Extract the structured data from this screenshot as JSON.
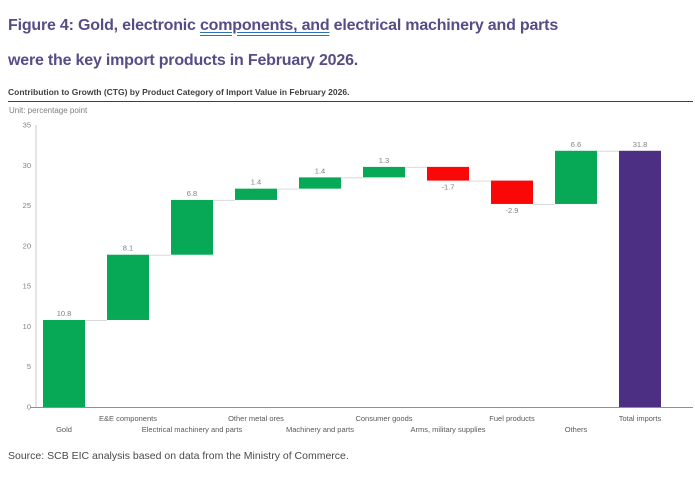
{
  "title": {
    "line1": {
      "pre": "Figure 4: Gold, electronic ",
      "underlined": "components, and",
      "post": " electrical machinery and parts"
    },
    "line2": "were the key import products in February 2026."
  },
  "subtitle": "Contribution to Growth (CTG) by Product Category of Import Value in February 2026.",
  "unit_label": "Unit: percentage point",
  "source": "Source: SCB EIC analysis based on data from the Ministry of Commerce.",
  "colors": {
    "title_text": "#584c87",
    "title_underline": "#2e74b5",
    "subtitle_text": "#3f3f3f",
    "divider": "#404040",
    "muted_text": "#7f7f7f",
    "xlabel_text": "#595959",
    "axis_line": "#8f8f8f",
    "yaxis_line": "#c9c9c9",
    "connector": "#d9d9d9",
    "positive_bar": "#07a956",
    "negative_bar": "#fa0707",
    "total_bar": "#4c2e82",
    "source_text": "#4a4a4a"
  },
  "chart_data": {
    "type": "bar",
    "subtype": "waterfall",
    "title": "Contribution to Growth (CTG) by Product Category of Import Value in February 2026.",
    "xlabel": "",
    "ylabel": "percentage point",
    "ylim": [
      0,
      35
    ],
    "ytick_step": 5,
    "yticks": [
      0,
      5,
      10,
      15,
      20,
      25,
      30,
      35
    ],
    "grid": false,
    "legend": "none",
    "categories": [
      "Gold",
      "E&E components",
      "Electrical machinery and parts",
      "Other metal ores",
      "Machinery and parts",
      "Consumer goods",
      "Arms, military supplies",
      "Fuel products",
      "Others",
      "Total imports"
    ],
    "values": [
      10.8,
      8.1,
      6.8,
      1.4,
      1.4,
      1.3,
      -1.7,
      -2.9,
      6.6,
      31.8
    ],
    "value_labels": [
      "10.8",
      "8.1",
      "6.8",
      "1.4",
      "1.4",
      "1.3",
      "-1.7",
      "-2.9",
      "6.6",
      "31.8"
    ],
    "bar_roles": [
      "delta",
      "delta",
      "delta",
      "delta",
      "delta",
      "delta",
      "delta",
      "delta",
      "delta",
      "total"
    ],
    "cumulative_levels": [
      10.8,
      18.9,
      25.7,
      27.1,
      28.5,
      29.8,
      28.1,
      25.2,
      31.8,
      31.8
    ]
  }
}
